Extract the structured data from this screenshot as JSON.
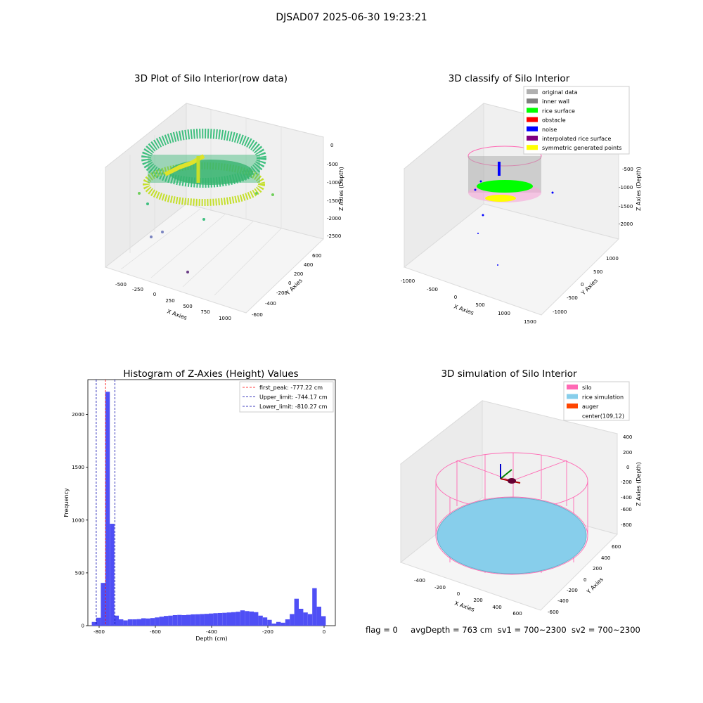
{
  "suptitle": "DJSAD07 2025-06-30 19:23:21",
  "footer": {
    "flag": "flag = 0",
    "avg_depth": "avgDepth = 763 cm",
    "sv1": "sv1 = 700~2300",
    "sv2": "sv2 = 700~2300"
  },
  "chart_data": [
    {
      "type": "scatter",
      "subtype": "3d",
      "title": "3D Plot of Silo Interior(row data)",
      "xlabel": "X Axies",
      "ylabel": "Y Axies",
      "zlabel": "Z Axies (Depth)",
      "xticks": [
        "-500",
        "-250",
        "0",
        "250",
        "500",
        "750",
        "1000"
      ],
      "yticks": [
        "-600",
        "-400",
        "-200",
        "0",
        "200",
        "400",
        "600"
      ],
      "zticks": [
        "0",
        "-500",
        "-1000",
        "-1500",
        "-2000",
        "-2500"
      ],
      "colormap": "viridis",
      "description_points": "ring of points forming silo wall, roughly x 0–500, y -400–400, z 0 to -800; scattered outliers down to z -2500"
    },
    {
      "type": "scatter",
      "subtype": "3d",
      "title": "3D classify of Silo Interior",
      "xlabel": "X Axies",
      "ylabel": "Y Axies",
      "zlabel": "Z Axies (Depth)",
      "xticks": [
        "-1000",
        "-500",
        "0",
        "500",
        "1000",
        "1500"
      ],
      "yticks": [
        "-1000",
        "-500",
        "0",
        "500",
        "1000"
      ],
      "zticks": [
        "0",
        "-500",
        "-1000",
        "-1500",
        "-2000"
      ],
      "legend": [
        {
          "label": "original data",
          "color": "#b0b0b0"
        },
        {
          "label": "inner wall",
          "color": "#808080"
        },
        {
          "label": "rice surface",
          "color": "#00ff00"
        },
        {
          "label": "obstacle",
          "color": "#ff0000"
        },
        {
          "label": "noise",
          "color": "#0000ff"
        },
        {
          "label": "interpolated rice surface",
          "color": "#800080"
        },
        {
          "label": "symmetric generated points",
          "color": "#ffff00"
        }
      ]
    },
    {
      "type": "bar",
      "subtype": "histogram",
      "title": "Histogram of Z-Axies (Height) Values",
      "xlabel": "Depth (cm)",
      "ylabel": "Frequency",
      "xlim": [
        -840,
        40
      ],
      "ylim": [
        0,
        2330
      ],
      "xticks": [
        -800,
        -600,
        -400,
        -200,
        0
      ],
      "yticks": [
        0,
        500,
        1000,
        1500,
        2000
      ],
      "bar_color": "#4f4ff5",
      "bin_width": 16,
      "bins": [
        [
          -826,
          35
        ],
        [
          -810,
          75
        ],
        [
          -794,
          405
        ],
        [
          -778,
          2215
        ],
        [
          -762,
          965
        ],
        [
          -746,
          95
        ],
        [
          -730,
          60
        ],
        [
          -714,
          50
        ],
        [
          -698,
          60
        ],
        [
          -682,
          60
        ],
        [
          -666,
          62
        ],
        [
          -650,
          70
        ],
        [
          -634,
          68
        ],
        [
          -618,
          72
        ],
        [
          -602,
          78
        ],
        [
          -586,
          85
        ],
        [
          -570,
          92
        ],
        [
          -554,
          95
        ],
        [
          -538,
          100
        ],
        [
          -522,
          102
        ],
        [
          -506,
          100
        ],
        [
          -490,
          103
        ],
        [
          -474,
          107
        ],
        [
          -458,
          108
        ],
        [
          -442,
          110
        ],
        [
          -426,
          112
        ],
        [
          -410,
          115
        ],
        [
          -394,
          118
        ],
        [
          -378,
          120
        ],
        [
          -362,
          122
        ],
        [
          -346,
          125
        ],
        [
          -330,
          128
        ],
        [
          -314,
          132
        ],
        [
          -298,
          145
        ],
        [
          -282,
          138
        ],
        [
          -266,
          134
        ],
        [
          -250,
          128
        ],
        [
          -234,
          95
        ],
        [
          -218,
          78
        ],
        [
          -202,
          55
        ],
        [
          -186,
          20
        ],
        [
          -170,
          35
        ],
        [
          -154,
          28
        ],
        [
          -138,
          60
        ],
        [
          -122,
          110
        ],
        [
          -106,
          255
        ],
        [
          -90,
          160
        ],
        [
          -74,
          125
        ],
        [
          -58,
          110
        ],
        [
          -42,
          355
        ],
        [
          -26,
          180
        ],
        [
          -10,
          90
        ]
      ],
      "vlines": [
        {
          "label": "first_peak: -777.22 cm",
          "x": -777.22,
          "color": "#ff0000"
        },
        {
          "label": "Upper_limit: -744.17 cm",
          "x": -744.17,
          "color": "#0000aa"
        },
        {
          "label": "Lower_limit: -810.27 cm",
          "x": -810.27,
          "color": "#0000aa"
        }
      ]
    },
    {
      "type": "surface",
      "subtype": "3d",
      "title": "3D simulation of Silo Interior",
      "xlabel": "X Axies",
      "ylabel": "Y Axies",
      "zlabel": "Z Axies (Depth)",
      "xticks": [
        "-400",
        "-200",
        "0",
        "200",
        "400",
        "600"
      ],
      "yticks": [
        "-600",
        "-400",
        "-200",
        "0",
        "200",
        "400",
        "600"
      ],
      "zticks": [
        "400",
        "200",
        "0",
        "-200",
        "-400",
        "-600",
        "-800"
      ],
      "legend": [
        {
          "label": "silo",
          "color": "#ff69b4"
        },
        {
          "label": "rice simulation",
          "color": "#87ceeb"
        },
        {
          "label": "auger",
          "color": "#ff4500"
        },
        {
          "label": "center(109,12)",
          "color": "none"
        }
      ]
    }
  ]
}
